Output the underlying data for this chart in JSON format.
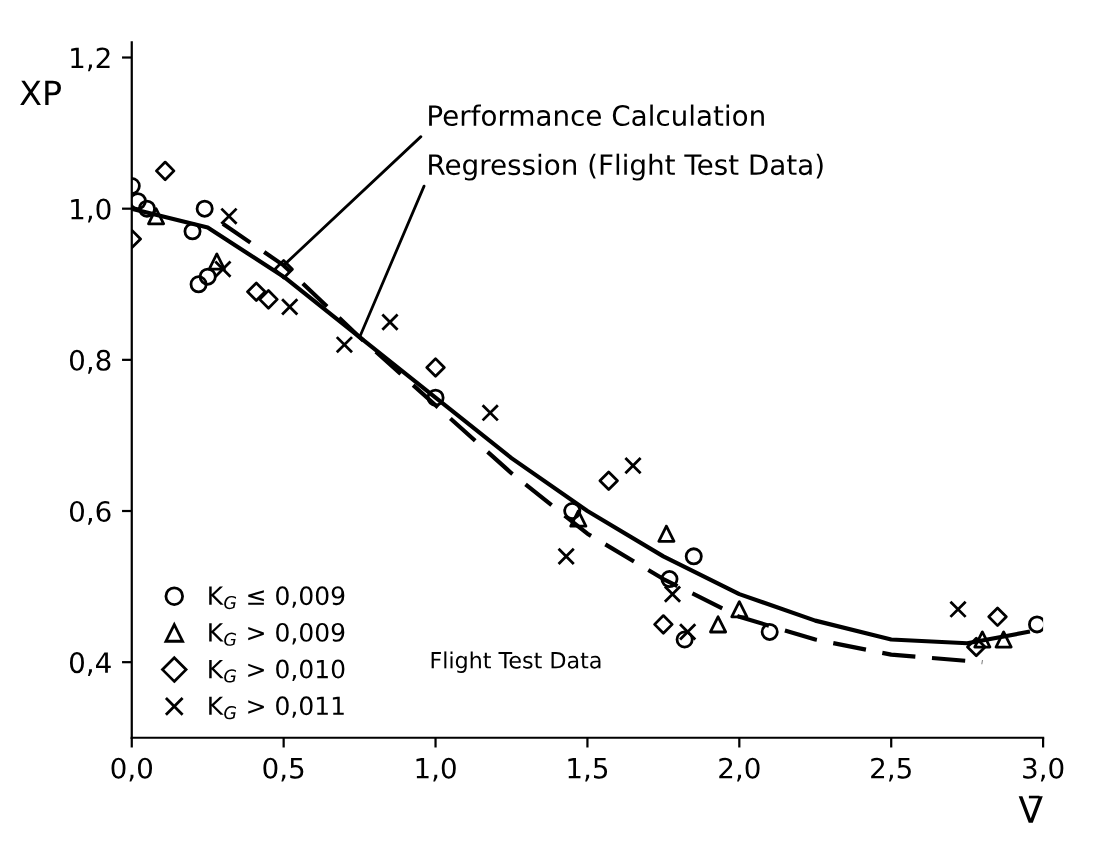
{
  "chart_data": {
    "type": "scatter",
    "xlabel": "V̄",
    "ylabel": "XP",
    "xlim": [
      0,
      3.0
    ],
    "ylim": [
      0.3,
      1.22
    ],
    "xticks": [
      {
        "value": 0,
        "label": "0,0"
      },
      {
        "value": 0.5,
        "label": "0,5"
      },
      {
        "value": 1.0,
        "label": "1,0"
      },
      {
        "value": 1.5,
        "label": "1,5"
      },
      {
        "value": 2.0,
        "label": "2,0"
      },
      {
        "value": 2.5,
        "label": "2,5"
      },
      {
        "value": 3.0,
        "label": "3,0"
      }
    ],
    "yticks": [
      {
        "value": 0.4,
        "label": "0,4"
      },
      {
        "value": 0.6,
        "label": "0,6"
      },
      {
        "value": 0.8,
        "label": "0,8"
      },
      {
        "value": 1.0,
        "label": "1,0"
      },
      {
        "value": 1.2,
        "label": "1,2"
      }
    ],
    "grid": false,
    "legend": "bottom left",
    "annotations": [
      "Flight Test Data"
    ],
    "series": [
      {
        "name": "K$_{G}$ ≤ 0,009",
        "marker": "circle",
        "color": "#000000",
        "x": [
          0.0,
          0.02,
          0.05,
          0.2,
          0.24,
          0.22,
          0.25,
          1.0,
          1.45,
          1.77,
          1.85,
          2.1,
          2.98,
          1.82
        ],
        "values": [
          1.03,
          1.01,
          1.0,
          0.97,
          1.0,
          0.9,
          0.91,
          0.75,
          0.6,
          0.51,
          0.54,
          0.44,
          0.45,
          0.43
        ]
      },
      {
        "name": "K$_{G}$ > 0,009",
        "marker": "triangle",
        "color": "#000000",
        "x": [
          0.08,
          0.28,
          1.47,
          1.76,
          1.93,
          2.0,
          2.8,
          2.87
        ],
        "values": [
          0.99,
          0.93,
          0.59,
          0.57,
          0.45,
          0.47,
          0.43,
          0.43
        ]
      },
      {
        "name": "K$_{G}$ > 0,010",
        "marker": "diamond",
        "color": "#000000",
        "x": [
          0.11,
          0.0,
          0.5,
          0.45,
          0.41,
          1.0,
          1.57,
          1.75,
          2.85,
          2.78
        ],
        "values": [
          1.05,
          0.96,
          0.92,
          0.88,
          0.89,
          0.79,
          0.64,
          0.45,
          0.46,
          0.42
        ]
      },
      {
        "name": "K$_{G}$ > 0,011",
        "marker": "cross",
        "color": "#000000",
        "x": [
          0.32,
          0.3,
          0.52,
          0.7,
          0.85,
          1.18,
          1.43,
          1.65,
          1.78,
          1.83,
          2.72
        ],
        "values": [
          0.99,
          0.92,
          0.87,
          0.82,
          0.85,
          0.73,
          0.54,
          0.66,
          0.49,
          0.44,
          0.47
        ]
      },
      {
        "type": "line",
        "name": "Performance Calculation",
        "line_style": "dashed",
        "color": "#000000",
        "x": [
          0.3,
          0.5,
          0.75,
          1.0,
          1.25,
          1.5,
          1.75,
          2.0,
          2.25,
          2.5,
          2.8
        ],
        "values": [
          0.98,
          0.925,
          0.83,
          0.74,
          0.65,
          0.57,
          0.51,
          0.46,
          0.43,
          0.41,
          0.4
        ]
      },
      {
        "type": "line",
        "name": "Regression (Flight Test Data)",
        "line_style": "solid",
        "color": "#000000",
        "x": [
          0.0,
          0.25,
          0.5,
          0.75,
          1.0,
          1.25,
          1.5,
          1.75,
          2.0,
          2.25,
          2.5,
          2.75,
          2.95
        ],
        "values": [
          1.0,
          0.975,
          0.91,
          0.83,
          0.75,
          0.67,
          0.6,
          0.54,
          0.49,
          0.455,
          0.43,
          0.425,
          0.44
        ]
      }
    ]
  }
}
